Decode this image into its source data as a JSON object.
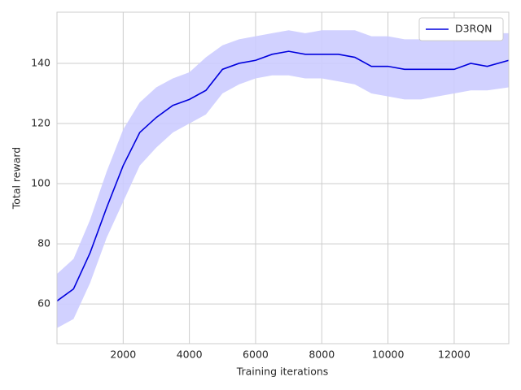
{
  "chart_data": {
    "type": "line",
    "xlabel": "Training iterations",
    "ylabel": "Total reward",
    "x": [
      0,
      500,
      1000,
      1500,
      2000,
      2500,
      3000,
      3500,
      4000,
      4500,
      5000,
      5500,
      6000,
      6500,
      7000,
      7500,
      8000,
      8500,
      9000,
      9500,
      10000,
      10500,
      11000,
      11500,
      12000,
      12500,
      13000,
      13650
    ],
    "series": [
      {
        "name": "D3RQN",
        "color": "#0000dd",
        "band_color": "#ccccff",
        "values": [
          61,
          65,
          77,
          92,
          106,
          117,
          122,
          126,
          128,
          131,
          138,
          140,
          141,
          143,
          144,
          143,
          143,
          143,
          142,
          139,
          139,
          138,
          138,
          138,
          138,
          140,
          139,
          141
        ],
        "lower": [
          52,
          55,
          67,
          82,
          94,
          106,
          112,
          117,
          120,
          123,
          130,
          133,
          135,
          136,
          136,
          135,
          135,
          134,
          133,
          130,
          129,
          128,
          128,
          129,
          130,
          131,
          131,
          132
        ],
        "upper": [
          70,
          75,
          88,
          104,
          118,
          127,
          132,
          135,
          137,
          142,
          146,
          148,
          149,
          150,
          151,
          150,
          151,
          151,
          151,
          149,
          149,
          148,
          148,
          149,
          149,
          150,
          150,
          150
        ]
      }
    ],
    "xlim": [
      0,
      13650
    ],
    "ylim": [
      46.8,
      157
    ],
    "xticks": [
      2000,
      4000,
      6000,
      8000,
      10000,
      12000
    ],
    "yticks": [
      60,
      80,
      100,
      120,
      140
    ],
    "grid": true,
    "legend": "upper right"
  }
}
